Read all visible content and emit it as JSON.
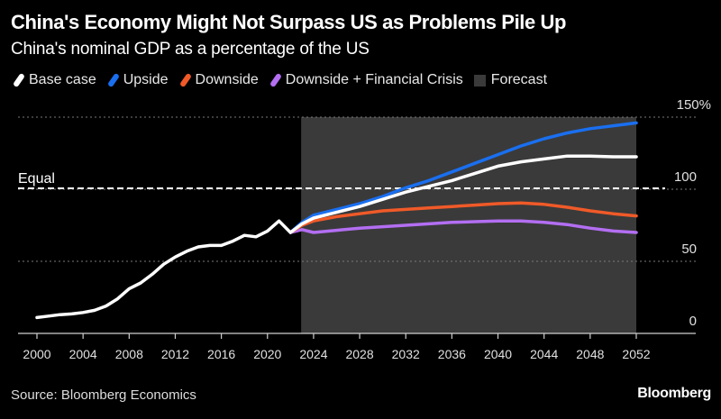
{
  "header": {
    "title": "China's Economy Might Not Surpass US as Problems Pile Up",
    "subtitle": "China's nominal GDP as a percentage of the US"
  },
  "legend": [
    {
      "label": "Base case",
      "color": "#ffffff",
      "kind": "line"
    },
    {
      "label": "Upside",
      "color": "#1a6ff0",
      "kind": "line"
    },
    {
      "label": "Downside",
      "color": "#f05a28",
      "kind": "line"
    },
    {
      "label": "Downside + Financial Crisis",
      "color": "#b36ef2",
      "kind": "line"
    },
    {
      "label": "Forecast",
      "color": "#3a3a3a",
      "kind": "box"
    }
  ],
  "footer": {
    "source": "Source: Bloomberg Economics",
    "brand": "Bloomberg"
  },
  "chart_data": {
    "type": "line",
    "title": "China's Economy Might Not Surpass US as Problems Pile Up",
    "subtitle": "China's nominal GDP as a percentage of the US",
    "xlabel": "",
    "ylabel": "",
    "xlim": [
      1998.5,
      2057
    ],
    "ylim": [
      0,
      150
    ],
    "x_ticks": [
      2000,
      2004,
      2008,
      2012,
      2016,
      2020,
      2024,
      2028,
      2032,
      2036,
      2040,
      2044,
      2048,
      2052
    ],
    "y_ticks": [
      0,
      50,
      100,
      150
    ],
    "y_tick_labels": [
      "0",
      "50",
      "100",
      "150%"
    ],
    "y_axis_position": "right",
    "grid": "horizontal dotted",
    "legend_position": "top-left",
    "forecast_region": {
      "from": 2023,
      "to": 2052,
      "color": "#3a3a3a",
      "label": "Forecast"
    },
    "reference_line": {
      "y": 100,
      "label": "Equal",
      "style": "dashed"
    },
    "series": [
      {
        "name": "Base case",
        "color": "#ffffff",
        "x": [
          2000,
          2001,
          2002,
          2003,
          2004,
          2005,
          2006,
          2007,
          2008,
          2009,
          2010,
          2011,
          2012,
          2013,
          2014,
          2015,
          2016,
          2017,
          2018,
          2019,
          2020,
          2021,
          2022,
          2023,
          2024,
          2026,
          2028,
          2030,
          2032,
          2034,
          2036,
          2038,
          2040,
          2042,
          2044,
          2046,
          2048,
          2050,
          2052
        ],
        "values": [
          11,
          12,
          13,
          13.5,
          14.5,
          16,
          19,
          24,
          31,
          35,
          41,
          48,
          53,
          57,
          60,
          61,
          61,
          64,
          68,
          67,
          71,
          78,
          70,
          76,
          80,
          84,
          88,
          93,
          98,
          102,
          106,
          111,
          116,
          119,
          121,
          123,
          123,
          122.5,
          122.5
        ]
      },
      {
        "name": "Upside",
        "color": "#1a6ff0",
        "x": [
          2022,
          2023,
          2024,
          2026,
          2028,
          2030,
          2032,
          2034,
          2036,
          2038,
          2040,
          2042,
          2044,
          2046,
          2048,
          2050,
          2052
        ],
        "values": [
          70,
          77,
          82,
          86,
          90,
          95,
          101,
          106,
          112,
          118,
          124,
          130,
          135,
          139,
          142,
          144,
          146
        ]
      },
      {
        "name": "Downside",
        "color": "#f05a28",
        "x": [
          2022,
          2023,
          2024,
          2026,
          2028,
          2030,
          2032,
          2034,
          2036,
          2038,
          2040,
          2042,
          2044,
          2046,
          2048,
          2050,
          2052
        ],
        "values": [
          70,
          75,
          78,
          81,
          83,
          85,
          86,
          87,
          88,
          89,
          90,
          90.5,
          89.5,
          87.5,
          85,
          83,
          81.5
        ]
      },
      {
        "name": "Downside + Financial Crisis",
        "color": "#b36ef2",
        "x": [
          2022,
          2023,
          2024,
          2026,
          2028,
          2030,
          2032,
          2034,
          2036,
          2038,
          2040,
          2042,
          2044,
          2046,
          2048,
          2050,
          2052
        ],
        "values": [
          70,
          72,
          70,
          71.5,
          73,
          74,
          75,
          76,
          77,
          77.5,
          78,
          78,
          77,
          75.5,
          73,
          71,
          70
        ]
      }
    ]
  }
}
